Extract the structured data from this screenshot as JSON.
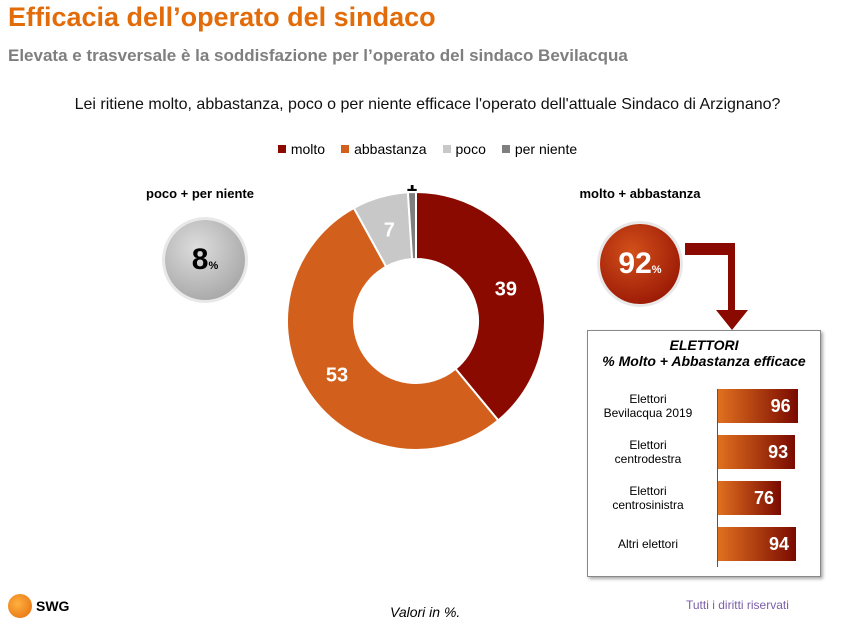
{
  "header": {
    "title": "Efficacia dell’operato del sindaco",
    "subtitle": "Elevata e trasversale è la soddisfazione per l’operato del sindaco Bevilacqua"
  },
  "question": "Lei ritiene molto, abbastanza, poco o per niente efficace l'operato dell'attuale Sindaco di Arzignano?",
  "chart_data": [
    {
      "type": "pie",
      "variant": "donut",
      "categories": [
        "molto",
        "abbastanza",
        "poco",
        "per niente"
      ],
      "values": [
        39,
        53,
        7,
        1
      ],
      "colors": [
        "#8b0a00",
        "#d35f1c",
        "#c8c8c8",
        "#7f7f7f"
      ],
      "legend": "top"
    },
    {
      "type": "bar",
      "orientation": "horizontal",
      "title": "ELETTORI",
      "subtitle": "% Molto + Abbastanza efficace",
      "categories": [
        "Elettori Bevilacqua 2019",
        "Elettori centrodestra",
        "Elettori centrosinistra",
        "Altri elettori"
      ],
      "values": [
        96,
        93,
        76,
        94
      ]
    }
  ],
  "summary": {
    "negative_label": "poco + per niente",
    "negative_value": "8",
    "positive_label": "molto + abbastanza",
    "positive_value": "92",
    "pct": "%"
  },
  "bars_rows": [
    [
      "Elettori",
      "Bevilacqua 2019"
    ],
    [
      "Elettori",
      "centrodestra"
    ],
    [
      "Elettori",
      "centrosinistra"
    ],
    [
      "Altri elettori",
      ""
    ]
  ],
  "footer": {
    "logo": "SWG",
    "note": "Valori in %.",
    "rights": "Tutti i diritti riservati"
  }
}
